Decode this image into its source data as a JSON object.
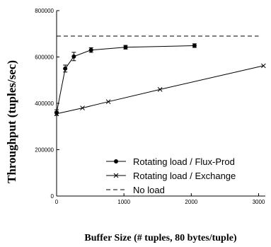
{
  "chart_data": {
    "type": "line",
    "xlabel": "Buffer Size (# tuples, 80 bytes/tuple)",
    "ylabel": "Throughput (tuples/sec)",
    "xlim": [
      0,
      3100
    ],
    "ylim": [
      0,
      800000
    ],
    "x_ticks": [
      0,
      1000,
      2000,
      3000
    ],
    "y_ticks": [
      0,
      200000,
      400000,
      600000,
      800000
    ],
    "grid": false,
    "legend_position": "bottom-right",
    "series": [
      {
        "name": "Rotating load / Flux-Prod",
        "marker": "circle",
        "line": "solid",
        "x": [
          0,
          128,
          256,
          512,
          1024,
          2048
        ],
        "y": [
          360000,
          550000,
          602000,
          630000,
          642000,
          649000
        ],
        "error": [
          12000,
          15000,
          18000,
          10000,
          8000,
          8000
        ]
      },
      {
        "name": "Rotating load / Exchange",
        "marker": "x",
        "line": "solid",
        "x": [
          0,
          384,
          768,
          1536,
          3072
        ],
        "y": [
          355000,
          380000,
          407000,
          460000,
          562000
        ]
      },
      {
        "name": "No load",
        "marker": "none",
        "line": "dashed",
        "y_constant": 690000
      }
    ]
  }
}
